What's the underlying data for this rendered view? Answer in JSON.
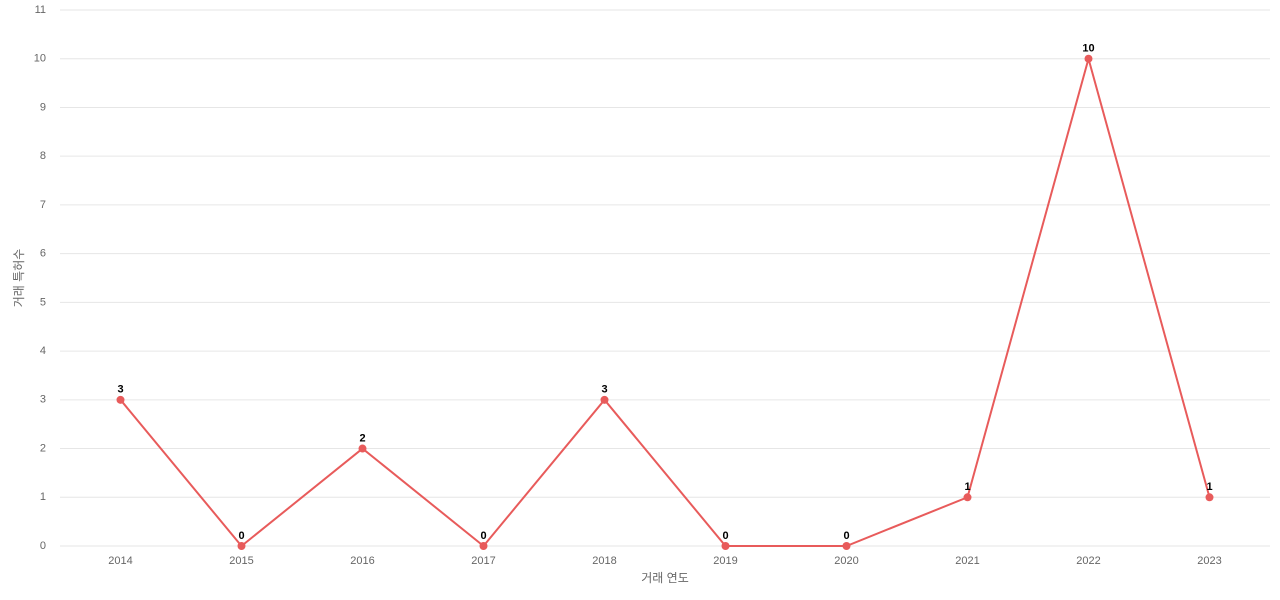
{
  "chart_data": {
    "type": "line",
    "x_label": "거래 연도",
    "y_label": "거래 특허수",
    "categories": [
      "2014",
      "2015",
      "2016",
      "2017",
      "2018",
      "2019",
      "2020",
      "2021",
      "2022",
      "2023"
    ],
    "values": [
      3,
      0,
      2,
      0,
      3,
      0,
      0,
      1,
      10,
      1
    ],
    "color": "#e85b5b",
    "ylim": [
      0,
      11
    ],
    "yticks": [
      0,
      1,
      2,
      3,
      4,
      5,
      6,
      7,
      8,
      9,
      10,
      11
    ],
    "grid": true
  }
}
